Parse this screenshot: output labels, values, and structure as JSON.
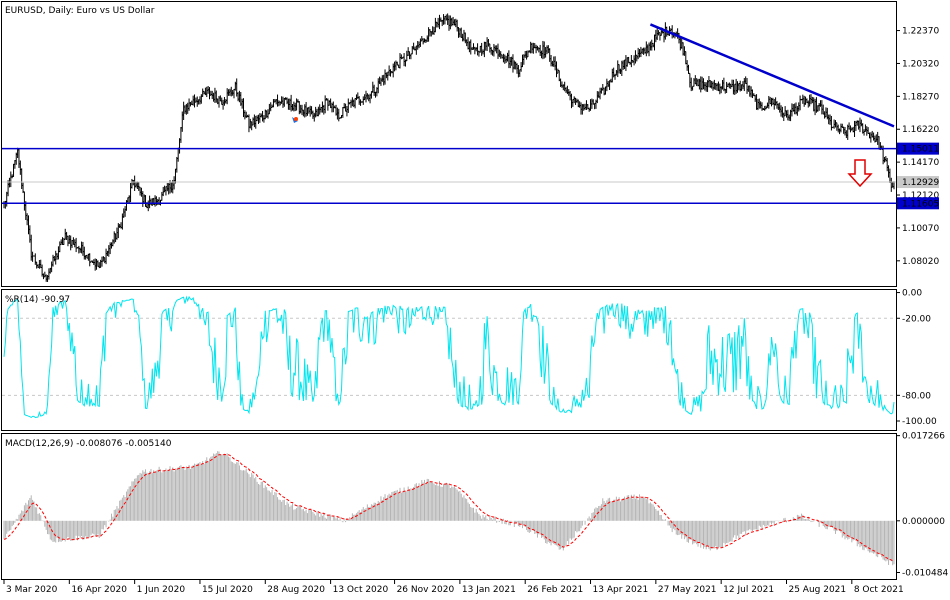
{
  "chart_data": [
    {
      "type": "candlestick",
      "title": "EURUSD, Daily:  Euro vs US Dollar",
      "y_ticks": [
        "1.22370",
        "1.20320",
        "1.18270",
        "1.16220",
        "1.14170",
        "1.12120",
        "1.10070",
        "1.08020"
      ],
      "ylim": [
        1.0645,
        1.2415
      ],
      "x_labels": [
        "3 Mar 2020",
        "16 Apr 2020",
        "1 Jun 2020",
        "15 Jul 2020",
        "28 Aug 2020",
        "13 Oct 2020",
        "26 Nov 2020",
        "13 Jan 2021",
        "26 Feb 2021",
        "13 Apr 2021",
        "27 May 2021",
        "12 Jul 2021",
        "25 Aug 2021",
        "8 Oct 2021"
      ],
      "x_anchors": [
        [
          0,
          1.115
        ],
        [
          10,
          1.1479
        ],
        [
          20,
          1.085
        ],
        [
          30,
          1.069
        ],
        [
          45,
          1.095
        ],
        [
          60,
          1.085
        ],
        [
          70,
          1.076
        ],
        [
          85,
          1.101
        ],
        [
          95,
          1.13
        ],
        [
          105,
          1.115
        ],
        [
          115,
          1.119
        ],
        [
          125,
          1.13
        ],
        [
          132,
          1.175
        ],
        [
          140,
          1.18
        ],
        [
          150,
          1.185
        ],
        [
          160,
          1.18
        ],
        [
          170,
          1.188
        ],
        [
          180,
          1.165
        ],
        [
          190,
          1.17
        ],
        [
          200,
          1.18
        ],
        [
          215,
          1.177
        ],
        [
          228,
          1.17
        ],
        [
          238,
          1.18
        ],
        [
          245,
          1.17
        ],
        [
          255,
          1.178
        ],
        [
          270,
          1.185
        ],
        [
          285,
          1.2
        ],
        [
          300,
          1.21
        ],
        [
          315,
          1.225
        ],
        [
          325,
          1.23
        ],
        [
          332,
          1.227
        ],
        [
          345,
          1.21
        ],
        [
          355,
          1.215
        ],
        [
          365,
          1.21
        ],
        [
          378,
          1.2
        ],
        [
          388,
          1.215
        ],
        [
          400,
          1.21
        ],
        [
          410,
          1.19
        ],
        [
          420,
          1.178
        ],
        [
          430,
          1.175
        ],
        [
          440,
          1.185
        ],
        [
          450,
          1.2
        ],
        [
          460,
          1.205
        ],
        [
          470,
          1.21
        ],
        [
          480,
          1.22
        ],
        [
          490,
          1.225
        ],
        [
          495,
          1.22
        ],
        [
          500,
          1.21
        ],
        [
          505,
          1.19
        ],
        [
          520,
          1.19
        ],
        [
          535,
          1.188
        ],
        [
          545,
          1.19
        ],
        [
          555,
          1.175
        ],
        [
          565,
          1.18
        ],
        [
          575,
          1.17
        ],
        [
          588,
          1.18
        ],
        [
          600,
          1.175
        ],
        [
          608,
          1.165
        ],
        [
          618,
          1.16
        ],
        [
          628,
          1.165
        ],
        [
          635,
          1.16
        ],
        [
          642,
          1.155
        ],
        [
          648,
          1.14
        ],
        [
          652,
          1.127
        ]
      ],
      "horizontal_levels": [
        {
          "label": "1.15011",
          "value": 1.15011
        },
        {
          "label": "1.11605",
          "value": 1.11605
        }
      ],
      "current_price": {
        "label": "1.12929",
        "value": 1.12929
      },
      "trendline": {
        "from": [
          475,
          1.2275
        ],
        "to": [
          654,
          1.164
        ]
      },
      "annotations": [
        "down-arrow"
      ],
      "grid": false
    },
    {
      "type": "line",
      "title": "%R(14) -90.97",
      "y_ticks": [
        "0.00",
        "-20.00",
        "-80.00",
        "-100.00"
      ],
      "ylim": [
        -107,
        2
      ],
      "dashed_levels": [
        -20,
        -80
      ],
      "color": "#00e5ee"
    },
    {
      "type": "bar+line",
      "title": "MACD(12,26,9) -0.008076 -0.005140",
      "y_ticks": [
        "0.017266",
        "0.000000",
        "-0.010484"
      ],
      "ylim": [
        -0.0118,
        0.0176
      ],
      "histogram_color": "#b4b4b4",
      "signal_color": "#ff0000",
      "anchors": [
        [
          0,
          -0.004
        ],
        [
          20,
          0.005
        ],
        [
          35,
          -0.004
        ],
        [
          70,
          -0.003
        ],
        [
          100,
          0.01
        ],
        [
          140,
          0.011
        ],
        [
          160,
          0.014
        ],
        [
          210,
          0.003
        ],
        [
          250,
          0.0
        ],
        [
          280,
          0.005
        ],
        [
          310,
          0.008
        ],
        [
          330,
          0.007
        ],
        [
          350,
          0.001
        ],
        [
          380,
          -0.001
        ],
        [
          410,
          -0.006
        ],
        [
          440,
          0.004
        ],
        [
          470,
          0.005
        ],
        [
          495,
          -0.003
        ],
        [
          520,
          -0.006
        ],
        [
          540,
          -0.003
        ],
        [
          560,
          -0.001
        ],
        [
          585,
          0.001
        ],
        [
          610,
          -0.002
        ],
        [
          635,
          -0.006
        ],
        [
          654,
          -0.009
        ]
      ]
    }
  ]
}
